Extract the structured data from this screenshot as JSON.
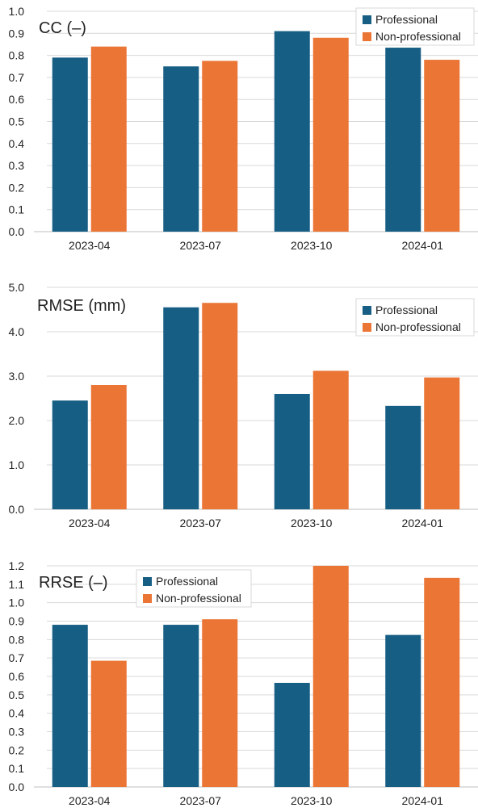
{
  "chart_data": [
    {
      "type": "bar",
      "title": "CC (–)",
      "categories": [
        "2023-04",
        "2023-07",
        "2023-10",
        "2024-01"
      ],
      "series": [
        {
          "name": "Professional",
          "values": [
            0.79,
            0.75,
            0.91,
            0.835
          ]
        },
        {
          "name": "Non-professional",
          "values": [
            0.84,
            0.775,
            0.88,
            0.78
          ]
        }
      ],
      "ylim": [
        0,
        1.0
      ],
      "yticks": [
        "0.0",
        "0.1",
        "0.2",
        "0.3",
        "0.4",
        "0.5",
        "0.6",
        "0.7",
        "0.8",
        "0.9",
        "1.0"
      ],
      "grid": true,
      "legend_position": "top-right",
      "xlabel": "",
      "ylabel": ""
    },
    {
      "type": "bar",
      "title": "RMSE (mm)",
      "categories": [
        "2023-04",
        "2023-07",
        "2023-10",
        "2024-01"
      ],
      "series": [
        {
          "name": "Professional",
          "values": [
            2.45,
            4.55,
            2.6,
            2.33
          ]
        },
        {
          "name": "Non-professional",
          "values": [
            2.8,
            4.65,
            3.12,
            2.97
          ]
        }
      ],
      "ylim": [
        0,
        5.0
      ],
      "yticks": [
        "0.0",
        "1.0",
        "2.0",
        "3.0",
        "4.0",
        "5.0"
      ],
      "grid": true,
      "legend_position": "top-right",
      "xlabel": "",
      "ylabel": ""
    },
    {
      "type": "bar",
      "title": "RRSE (–)",
      "categories": [
        "2023-04",
        "2023-07",
        "2023-10",
        "2024-01"
      ],
      "series": [
        {
          "name": "Professional",
          "values": [
            0.88,
            0.88,
            0.565,
            0.825
          ]
        },
        {
          "name": "Non-professional",
          "values": [
            0.685,
            0.91,
            1.2,
            1.135
          ]
        }
      ],
      "ylim": [
        0,
        1.2
      ],
      "yticks": [
        "0.0",
        "0.1",
        "0.2",
        "0.3",
        "0.4",
        "0.5",
        "0.6",
        "0.7",
        "0.8",
        "0.9",
        "1.0",
        "1.1",
        "1.2"
      ],
      "grid": true,
      "legend_position": "top-left",
      "xlabel": "",
      "ylabel": ""
    }
  ],
  "colors": {
    "professional": "#175e84",
    "non_professional": "#ea7535",
    "grid": "#d9d9d9",
    "axis": "#bfbfbf"
  }
}
